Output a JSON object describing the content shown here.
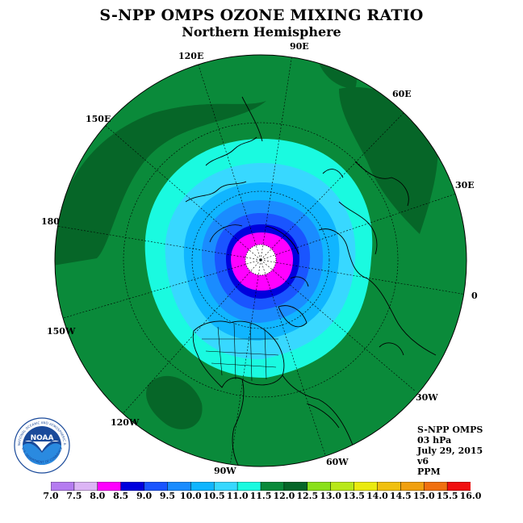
{
  "header": {
    "title": "S-NPP OMPS OZONE MIXING RATIO",
    "subtitle": "Northern Hemisphere"
  },
  "longitude_labels": [
    "90E",
    "60E",
    "30E",
    "0",
    "30W",
    "60W",
    "90W",
    "120W",
    "150W",
    "180",
    "150E",
    "120E"
  ],
  "info": {
    "line1": "S-NPP OMPS",
    "line2": "03 hPa",
    "line3": "July 29, 2015",
    "line4": "v6",
    "line5": "PPM"
  },
  "logo": {
    "text": "NOAA",
    "ring_text": "NATIONAL OCEANIC AND ATMOSPHERIC ADMINISTRATION",
    "ring_text_bottom": "U.S. DEPARTMENT OF COMMERCE"
  },
  "colorbar": {
    "ticks": [
      "7.0",
      "7.5",
      "8.0",
      "8.5",
      "9.0",
      "9.5",
      "10.0",
      "10.5",
      "11.0",
      "11.5",
      "12.0",
      "12.5",
      "13.0",
      "13.5",
      "14.0",
      "14.5",
      "15.0",
      "15.5",
      "16.0"
    ],
    "colors": [
      "#b57cf0",
      "#dcb5f5",
      "#ff00ff",
      "#0000dd",
      "#1a55ff",
      "#1a8cff",
      "#10b5ff",
      "#38d8ff",
      "#1afae0",
      "#0a8a3a",
      "#066628",
      "#8ae01a",
      "#b8e81a",
      "#eaea10",
      "#f0c010",
      "#f0a010",
      "#f07010",
      "#f01010",
      "#e01010",
      "#8a5030"
    ]
  },
  "palette": {
    "polar_night": "#ffffff",
    "magenta": "#ff00ff",
    "deep_blue": "#0000dd",
    "blue": "#1a55ff",
    "mid_blue": "#1a8cff",
    "light_blue": "#10b5ff",
    "cyan_blue": "#38d8ff",
    "aqua": "#1afae0",
    "green": "#0a8a3a",
    "dark_green": "#066628"
  }
}
